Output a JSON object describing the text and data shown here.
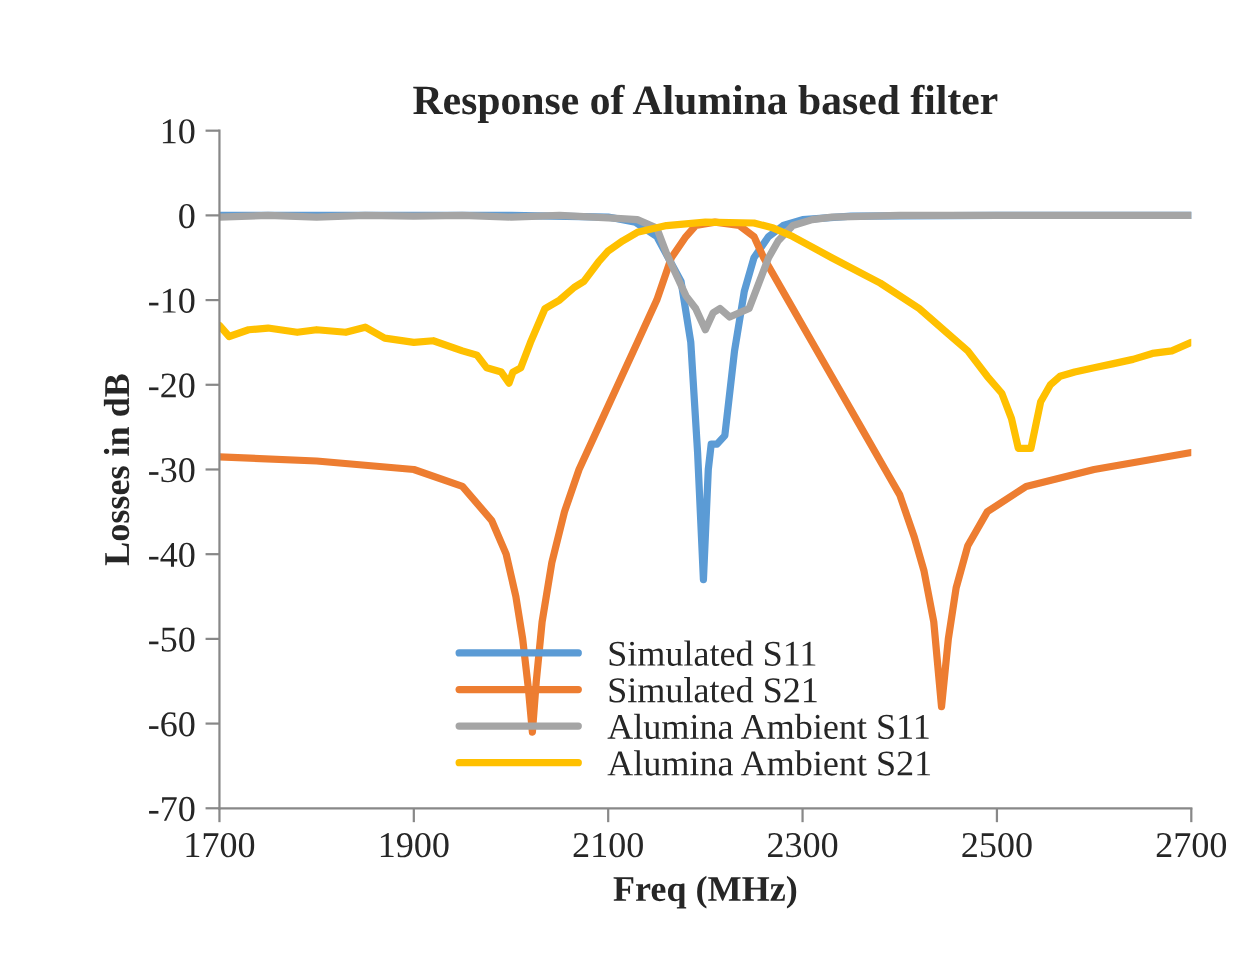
{
  "chart_data": {
    "type": "line",
    "title": "Response of Alumina based filter",
    "xlabel": "Freq (MHz)",
    "ylabel": "Losses in dB",
    "xlim": [
      1700,
      2700
    ],
    "xticks": [
      1700,
      1900,
      2100,
      2300,
      2500,
      2700
    ],
    "ylim": [
      -70,
      10
    ],
    "yticks": [
      -70,
      -60,
      -50,
      -40,
      -30,
      -20,
      -10,
      0,
      10
    ],
    "grid": false,
    "legend": "bottom",
    "marker": "none",
    "line_style": "solid",
    "series": [
      {
        "name": "Simulated S11",
        "color": "#5b9bd5",
        "x": [
          1700,
          1800,
          1900,
          2000,
          2100,
          2128,
          2150,
          2175,
          2185,
          2192,
          2198,
          2203,
          2206,
          2212,
          2220,
          2230,
          2240,
          2250,
          2265,
          2280,
          2300,
          2350,
          2500,
          2700
        ],
        "values": [
          0,
          0,
          0,
          0,
          -0.2,
          -0.8,
          -2.5,
          -7.8,
          -15,
          -28,
          -43,
          -30,
          -27,
          -27,
          -26,
          -16,
          -9,
          -5,
          -2.5,
          -1.2,
          -0.5,
          -0.1,
          0,
          0
        ]
      },
      {
        "name": "Simulated S21",
        "color": "#ed7d31",
        "x": [
          1700,
          1800,
          1900,
          1950,
          1980,
          1995,
          2005,
          2012,
          2018,
          2022,
          2026,
          2032,
          2042,
          2055,
          2070,
          2090,
          2110,
          2130,
          2150,
          2165,
          2180,
          2190,
          2210,
          2235,
          2250,
          2260,
          2285,
          2310,
          2335,
          2360,
          2385,
          2400,
          2415,
          2425,
          2435,
          2443,
          2450,
          2458,
          2470,
          2490,
          2530,
          2600,
          2700
        ],
        "values": [
          -28.5,
          -29,
          -30,
          -32,
          -36,
          -40,
          -45,
          -50,
          -56,
          -61,
          -55,
          -48,
          -41,
          -35,
          -30,
          -25,
          -20,
          -15,
          -10,
          -5,
          -2.5,
          -1.2,
          -0.8,
          -1.2,
          -2.5,
          -5,
          -10,
          -15,
          -20,
          -25,
          -30,
          -33,
          -38,
          -42,
          -48,
          -58,
          -50,
          -44,
          -39,
          -35,
          -32,
          -30,
          -28
        ]
      },
      {
        "name": "Alumina Ambient S11",
        "color": "#a5a5a5",
        "x": [
          1700,
          1750,
          1800,
          1850,
          1900,
          1950,
          2000,
          2050,
          2100,
          2130,
          2150,
          2160,
          2170,
          2180,
          2190,
          2200,
          2208,
          2215,
          2225,
          2235,
          2245,
          2255,
          2265,
          2275,
          2290,
          2310,
          2330,
          2400,
          2500,
          2600,
          2700
        ],
        "values": [
          -0.2,
          0,
          -0.2,
          0,
          -0.1,
          0,
          -0.2,
          0,
          -0.3,
          -0.5,
          -1.5,
          -4.5,
          -7,
          -9.5,
          -11,
          -13.5,
          -11.5,
          -11,
          -12,
          -11.5,
          -11,
          -8,
          -5,
          -3,
          -1.2,
          -0.5,
          -0.2,
          0,
          0,
          0,
          0
        ]
      },
      {
        "name": "Alumina Ambient S21",
        "color": "#ffc000",
        "x": [
          1700,
          1710,
          1730,
          1750,
          1780,
          1800,
          1830,
          1850,
          1870,
          1900,
          1920,
          1950,
          1965,
          1975,
          1990,
          1998,
          2002,
          2010,
          2020,
          2035,
          2050,
          2065,
          2075,
          2090,
          2100,
          2115,
          2130,
          2160,
          2200,
          2250,
          2270,
          2290,
          2330,
          2380,
          2420,
          2450,
          2470,
          2490,
          2505,
          2515,
          2522,
          2530,
          2535,
          2545,
          2555,
          2565,
          2580,
          2600,
          2620,
          2640,
          2660,
          2680,
          2700
        ],
        "values": [
          -13,
          -14.3,
          -13.5,
          -13.3,
          -13.8,
          -13.5,
          -13.8,
          -13.2,
          -14.5,
          -15,
          -14.8,
          -16,
          -16.5,
          -18,
          -18.5,
          -19.8,
          -18.5,
          -18,
          -15,
          -11,
          -10,
          -8.5,
          -7.8,
          -5.5,
          -4.2,
          -3,
          -2,
          -1.2,
          -0.8,
          -0.9,
          -1.5,
          -2.5,
          -5,
          -8,
          -11,
          -14,
          -16,
          -19,
          -21,
          -24,
          -27.5,
          -27.5,
          -27.5,
          -22,
          -20,
          -19,
          -18.5,
          -18,
          -17.5,
          -17,
          -16.3,
          -16,
          -15
        ]
      }
    ]
  }
}
